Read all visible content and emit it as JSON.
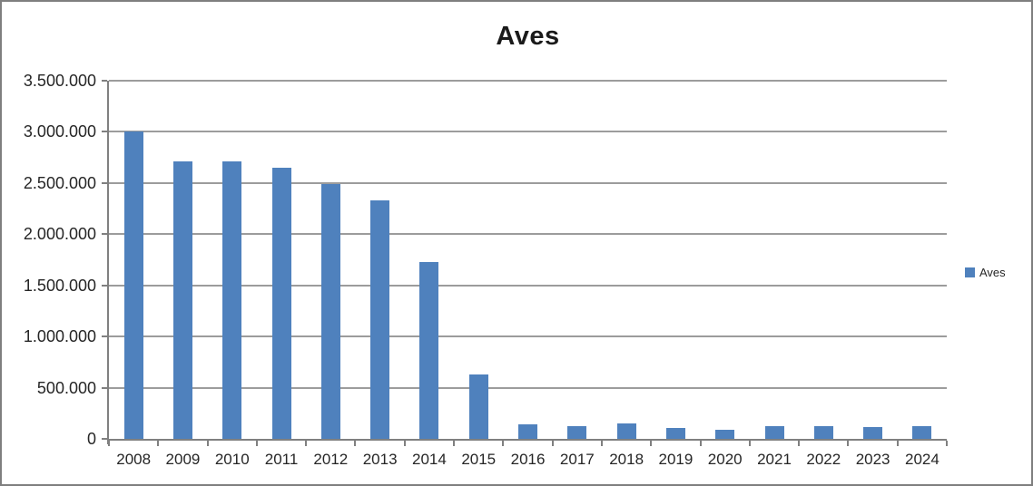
{
  "window": {
    "background": "#FFFFFF",
    "border_color": "#7F7F7F"
  },
  "chart_data": {
    "type": "bar",
    "title": "Aves",
    "series_name": "Aves",
    "categories": [
      "2008",
      "2009",
      "2010",
      "2011",
      "2012",
      "2013",
      "2014",
      "2015",
      "2016",
      "2017",
      "2018",
      "2019",
      "2020",
      "2021",
      "2022",
      "2023",
      "2024"
    ],
    "values": [
      3000000,
      2710000,
      2710000,
      2650000,
      2490000,
      2330000,
      1730000,
      630000,
      140000,
      125000,
      150000,
      110000,
      85000,
      120000,
      125000,
      115000,
      125000
    ],
    "ylim": [
      0,
      3500000
    ],
    "y_ticks": [
      {
        "label": "0",
        "value": 0
      },
      {
        "label": "500.000",
        "value": 500000
      },
      {
        "label": "1.000.000",
        "value": 1000000
      },
      {
        "label": "1.500.000",
        "value": 1500000
      },
      {
        "label": "2.000.000",
        "value": 2000000
      },
      {
        "label": "2.500.000",
        "value": 2500000
      },
      {
        "label": "3.000.000",
        "value": 3000000
      },
      {
        "label": "3.500.000",
        "value": 3500000
      }
    ],
    "xlabel": "",
    "ylabel": "",
    "grid": true,
    "legend": {
      "label": "Aves",
      "position": "right"
    },
    "colors": {
      "bar": "#4F81BD",
      "grid": "#9C9C9C",
      "axis": "#808080",
      "text": "#262626",
      "title": "#1A1A1A",
      "border": "#7F7F7F"
    }
  }
}
